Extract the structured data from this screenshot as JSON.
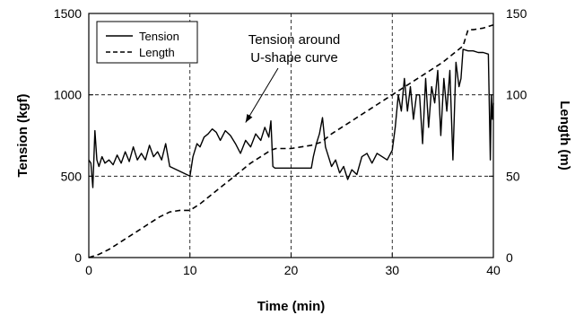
{
  "chart_data": {
    "type": "line",
    "xlabel": "Time (min)",
    "ylabel_left": "Tension (kgf)",
    "ylabel_right": "Length (m)",
    "xlim": [
      0,
      40
    ],
    "ylim_left": [
      0,
      1500
    ],
    "ylim_right": [
      0,
      150
    ],
    "x_ticks": [
      "0",
      "10",
      "20",
      "30",
      "40"
    ],
    "y_ticks_left": [
      "0",
      "500",
      "1000",
      "1500"
    ],
    "y_ticks_right": [
      "0",
      "50",
      "100",
      "150"
    ],
    "grid": "dashed at major ticks",
    "legend_position": "top-left",
    "annotation": {
      "lines": [
        "Tension around",
        "U-shape curve"
      ],
      "arrow_to": [
        15.5,
        830
      ]
    },
    "series": [
      {
        "name": "Tension",
        "axis": "left",
        "style": "solid",
        "x": [
          0,
          0.2,
          0.4,
          0.6,
          0.8,
          1.0,
          1.3,
          1.6,
          2.0,
          2.4,
          2.8,
          3.2,
          3.6,
          4.0,
          4.4,
          4.8,
          5.2,
          5.6,
          6.0,
          6.4,
          6.8,
          7.2,
          7.6,
          8.0,
          9.0,
          10.0,
          10.3,
          10.7,
          11.0,
          11.4,
          11.8,
          12.2,
          12.6,
          13.0,
          13.5,
          14.0,
          14.5,
          15.0,
          15.5,
          16.0,
          16.5,
          17.0,
          17.4,
          17.8,
          18.0,
          18.2,
          18.4,
          19.0,
          20.0,
          21.0,
          22.0,
          22.2,
          22.5,
          22.8,
          23.1,
          23.4,
          23.7,
          24.0,
          24.4,
          24.8,
          25.2,
          25.6,
          26.0,
          26.5,
          27.0,
          27.5,
          28.0,
          28.5,
          29.0,
          29.5,
          30.0,
          30.3,
          30.6,
          30.9,
          31.2,
          31.5,
          31.8,
          32.1,
          32.4,
          32.7,
          33.0,
          33.3,
          33.6,
          33.9,
          34.2,
          34.5,
          34.8,
          35.1,
          35.4,
          35.7,
          36.0,
          36.3,
          36.6,
          36.8,
          37.0,
          37.5,
          38.0,
          38.5,
          39.0,
          39.5,
          39.7,
          39.8,
          39.9,
          40.0
        ],
        "values": [
          600,
          580,
          430,
          780,
          600,
          560,
          620,
          580,
          600,
          570,
          630,
          580,
          650,
          590,
          680,
          600,
          640,
          600,
          690,
          620,
          650,
          600,
          700,
          560,
          530,
          500,
          620,
          700,
          680,
          740,
          760,
          790,
          770,
          720,
          780,
          750,
          700,
          640,
          720,
          680,
          760,
          720,
          800,
          740,
          840,
          560,
          550,
          550,
          550,
          550,
          550,
          620,
          700,
          760,
          860,
          680,
          620,
          560,
          600,
          520,
          560,
          480,
          540,
          510,
          620,
          640,
          580,
          640,
          620,
          600,
          660,
          800,
          1000,
          900,
          1100,
          900,
          1050,
          850,
          1000,
          1000,
          700,
          1100,
          800,
          1050,
          950,
          1150,
          750,
          1100,
          900,
          1150,
          600,
          1200,
          1050,
          1100,
          1280,
          1270,
          1270,
          1260,
          1260,
          1250,
          600,
          1000,
          850,
          950
        ]
      },
      {
        "name": "Length",
        "axis": "right",
        "style": "dashed",
        "x": [
          0,
          1,
          2,
          3,
          4,
          5,
          6,
          7,
          8,
          9,
          10,
          11,
          12,
          13,
          14,
          15,
          16,
          17,
          18,
          18.5,
          19,
          20,
          21,
          22,
          22.5,
          23,
          24,
          25,
          26,
          27,
          28,
          29,
          30,
          31,
          32,
          33,
          34,
          35,
          36,
          37,
          37.5,
          38,
          39,
          40
        ],
        "values": [
          0,
          2,
          5,
          9,
          13,
          17,
          21,
          25,
          28,
          29,
          29,
          33,
          38,
          43,
          48,
          53,
          58,
          62,
          66,
          67,
          67,
          67,
          68,
          69,
          70,
          71,
          76,
          80,
          84,
          88,
          92,
          96,
          100,
          104,
          108,
          112,
          116,
          120,
          125,
          130,
          140,
          140,
          141,
          143
        ]
      }
    ]
  }
}
